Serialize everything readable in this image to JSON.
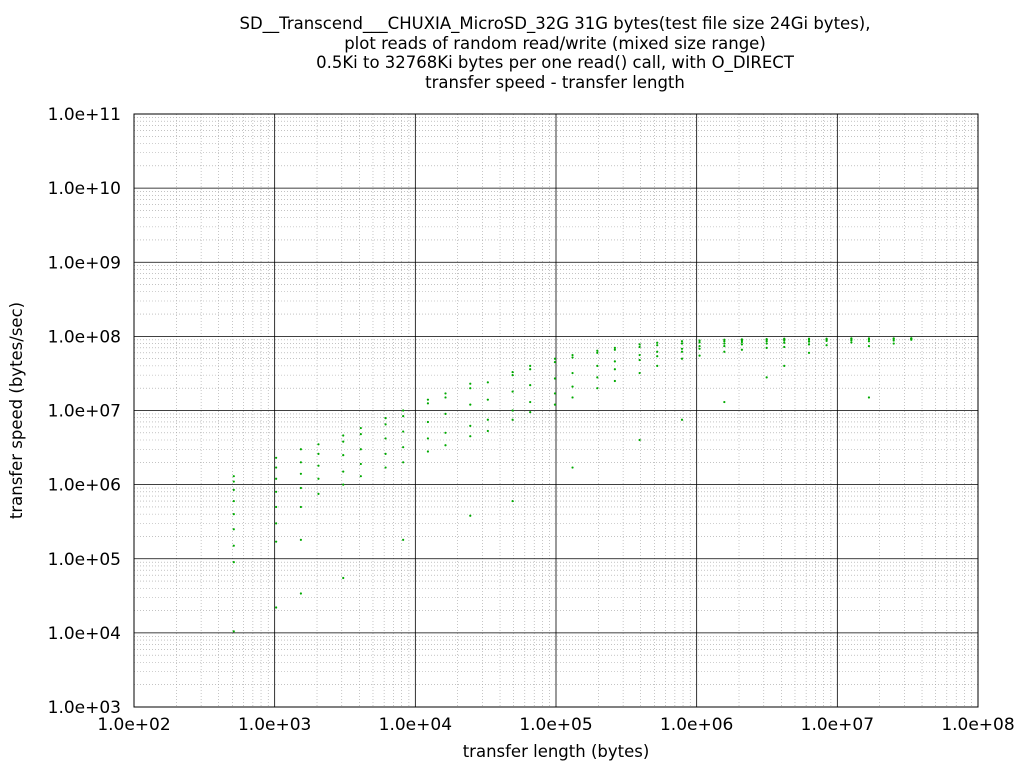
{
  "chart_data": {
    "type": "scatter",
    "title": [
      "SD__Transcend___CHUXIA_MicroSD_32G 31G bytes(test file size 24Gi bytes),",
      "plot reads of random read/write (mixed size range)",
      "0.5Ki to 32768Ki bytes per one read() call, with O_DIRECT",
      "transfer speed - transfer length"
    ],
    "xlabel": "transfer length (bytes)",
    "ylabel": "transfer speed (bytes/sec)",
    "x_scale": "log",
    "y_scale": "log",
    "xlim": [
      100,
      100000000
    ],
    "ylim": [
      1000,
      100000000000
    ],
    "x_ticks": [
      100,
      1000,
      10000,
      100000,
      1000000,
      10000000,
      100000000
    ],
    "x_tick_labels": [
      "1.0e+02",
      "1.0e+03",
      "1.0e+04",
      "1.0e+05",
      "1.0e+06",
      "1.0e+07",
      "1.0e+08"
    ],
    "y_ticks": [
      1000,
      10000,
      100000,
      1000000,
      10000000,
      100000000,
      1000000000,
      10000000000,
      100000000000
    ],
    "y_tick_labels": [
      "1.0e+03",
      "1.0e+04",
      "1.0e+05",
      "1.0e+06",
      "1.0e+07",
      "1.0e+08",
      "1.0e+09",
      "1.0e+10",
      "1.0e+11"
    ],
    "grid": true,
    "point_color": "#00aa00",
    "x_range_of_points": [
      512,
      33554432
    ],
    "series": [
      {
        "points": [
          [
            512,
            10500
          ],
          [
            512,
            90000
          ],
          [
            512,
            150000
          ],
          [
            512,
            250000
          ],
          [
            512,
            400000
          ],
          [
            512,
            600000
          ],
          [
            512,
            850000
          ],
          [
            512,
            1100000
          ],
          [
            512,
            1300000
          ],
          [
            1024,
            22000
          ],
          [
            1024,
            170000
          ],
          [
            1024,
            300000
          ],
          [
            1024,
            500000
          ],
          [
            1024,
            800000
          ],
          [
            1024,
            1200000
          ],
          [
            1024,
            1700000
          ],
          [
            1024,
            2300000
          ],
          [
            1536,
            34000
          ],
          [
            1536,
            180000
          ],
          [
            1536,
            500000
          ],
          [
            1536,
            900000
          ],
          [
            1536,
            1400000
          ],
          [
            1536,
            2000000
          ],
          [
            1536,
            3000000
          ],
          [
            2048,
            750000
          ],
          [
            2048,
            1200000
          ],
          [
            2048,
            1800000
          ],
          [
            2048,
            2600000
          ],
          [
            2048,
            3500000
          ],
          [
            3072,
            55000
          ],
          [
            3072,
            1000000
          ],
          [
            3072,
            1500000
          ],
          [
            3072,
            2500000
          ],
          [
            3072,
            3800000
          ],
          [
            3072,
            4600000
          ],
          [
            4096,
            1300000
          ],
          [
            4096,
            1900000
          ],
          [
            4096,
            3000000
          ],
          [
            4096,
            4800000
          ],
          [
            4096,
            5800000
          ],
          [
            6144,
            1700000
          ],
          [
            6144,
            2600000
          ],
          [
            6144,
            4200000
          ],
          [
            6144,
            6500000
          ],
          [
            6144,
            7900000
          ],
          [
            8192,
            180000
          ],
          [
            8192,
            2000000
          ],
          [
            8192,
            3200000
          ],
          [
            8192,
            5200000
          ],
          [
            8192,
            8400000
          ],
          [
            8192,
            10000000
          ],
          [
            12288,
            2800000
          ],
          [
            12288,
            4200000
          ],
          [
            12288,
            7000000
          ],
          [
            12288,
            12500000
          ],
          [
            12288,
            14000000
          ],
          [
            16384,
            3400000
          ],
          [
            16384,
            5000000
          ],
          [
            16384,
            9000000
          ],
          [
            16384,
            15000000
          ],
          [
            16384,
            17000000
          ],
          [
            24576,
            380000
          ],
          [
            24576,
            4500000
          ],
          [
            24576,
            6200000
          ],
          [
            24576,
            12000000
          ],
          [
            24576,
            20000000
          ],
          [
            24576,
            23000000
          ],
          [
            32768,
            5300000
          ],
          [
            32768,
            7500000
          ],
          [
            32768,
            14000000
          ],
          [
            32768,
            24000000
          ],
          [
            49152,
            600000
          ],
          [
            49152,
            7500000
          ],
          [
            49152,
            10000000
          ],
          [
            49152,
            18000000
          ],
          [
            49152,
            30000000
          ],
          [
            49152,
            33000000
          ],
          [
            65536,
            9500000
          ],
          [
            65536,
            13000000
          ],
          [
            65536,
            22000000
          ],
          [
            65536,
            36000000
          ],
          [
            65536,
            40000000
          ],
          [
            98304,
            12000000
          ],
          [
            98304,
            17000000
          ],
          [
            98304,
            27000000
          ],
          [
            98304,
            45000000
          ],
          [
            98304,
            50000000
          ],
          [
            131072,
            1700000
          ],
          [
            131072,
            15000000
          ],
          [
            131072,
            21000000
          ],
          [
            131072,
            32000000
          ],
          [
            131072,
            52000000
          ],
          [
            131072,
            56000000
          ],
          [
            196608,
            20000000
          ],
          [
            196608,
            28000000
          ],
          [
            196608,
            40000000
          ],
          [
            196608,
            60000000
          ],
          [
            196608,
            64000000
          ],
          [
            262144,
            25000000
          ],
          [
            262144,
            36000000
          ],
          [
            262144,
            46000000
          ],
          [
            262144,
            66000000
          ],
          [
            262144,
            70000000
          ],
          [
            393216,
            4000000
          ],
          [
            393216,
            32000000
          ],
          [
            393216,
            48000000
          ],
          [
            393216,
            56000000
          ],
          [
            393216,
            72000000
          ],
          [
            393216,
            78000000
          ],
          [
            524288,
            40000000
          ],
          [
            524288,
            54000000
          ],
          [
            524288,
            62000000
          ],
          [
            524288,
            76000000
          ],
          [
            524288,
            82000000
          ],
          [
            786432,
            7500000
          ],
          [
            786432,
            50000000
          ],
          [
            786432,
            62000000
          ],
          [
            786432,
            68000000
          ],
          [
            786432,
            80000000
          ],
          [
            786432,
            86000000
          ],
          [
            1048576,
            55000000
          ],
          [
            1048576,
            68000000
          ],
          [
            1048576,
            74000000
          ],
          [
            1048576,
            83000000
          ],
          [
            1048576,
            88000000
          ],
          [
            1572864,
            13000000
          ],
          [
            1572864,
            62000000
          ],
          [
            1572864,
            74000000
          ],
          [
            1572864,
            80000000
          ],
          [
            1572864,
            86000000
          ],
          [
            1572864,
            90000000
          ],
          [
            2097152,
            66000000
          ],
          [
            2097152,
            78000000
          ],
          [
            2097152,
            84000000
          ],
          [
            2097152,
            88000000
          ],
          [
            2097152,
            91000000
          ],
          [
            3145728,
            28000000
          ],
          [
            3145728,
            70000000
          ],
          [
            3145728,
            80000000
          ],
          [
            3145728,
            86000000
          ],
          [
            3145728,
            90000000
          ],
          [
            3145728,
            92000000
          ],
          [
            4194304,
            40000000
          ],
          [
            4194304,
            72000000
          ],
          [
            4194304,
            82000000
          ],
          [
            4194304,
            88000000
          ],
          [
            4194304,
            91000000
          ],
          [
            4194304,
            93000000
          ],
          [
            6291456,
            60000000
          ],
          [
            6291456,
            78000000
          ],
          [
            6291456,
            85000000
          ],
          [
            6291456,
            90000000
          ],
          [
            6291456,
            93000000
          ],
          [
            8388608,
            76000000
          ],
          [
            8388608,
            87000000
          ],
          [
            8388608,
            91000000
          ],
          [
            8388608,
            93000000
          ],
          [
            12582912,
            83000000
          ],
          [
            12582912,
            89000000
          ],
          [
            12582912,
            92000000
          ],
          [
            12582912,
            94000000
          ],
          [
            16777216,
            15000000
          ],
          [
            16777216,
            74000000
          ],
          [
            16777216,
            86000000
          ],
          [
            16777216,
            91000000
          ],
          [
            16777216,
            94000000
          ],
          [
            25165824,
            80000000
          ],
          [
            25165824,
            88000000
          ],
          [
            25165824,
            92000000
          ],
          [
            25165824,
            94000000
          ],
          [
            33554432,
            90000000
          ],
          [
            33554432,
            93000000
          ],
          [
            33554432,
            94500000
          ]
        ]
      }
    ]
  }
}
